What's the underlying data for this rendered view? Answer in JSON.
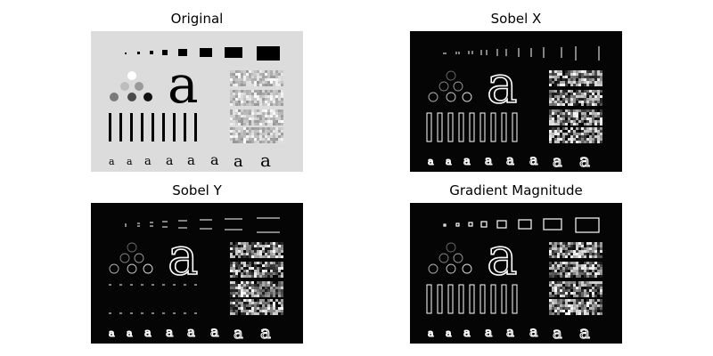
{
  "panels": [
    {
      "title": "Original"
    },
    {
      "title": "Sobel X"
    },
    {
      "title": "Sobel Y"
    },
    {
      "title": "Gradient Magnitude"
    }
  ],
  "images": {
    "letter": "a",
    "bg_original": "#dcdcdc",
    "bg_edges": "#050505",
    "ink": "#000000",
    "edge": "#ffffff"
  }
}
